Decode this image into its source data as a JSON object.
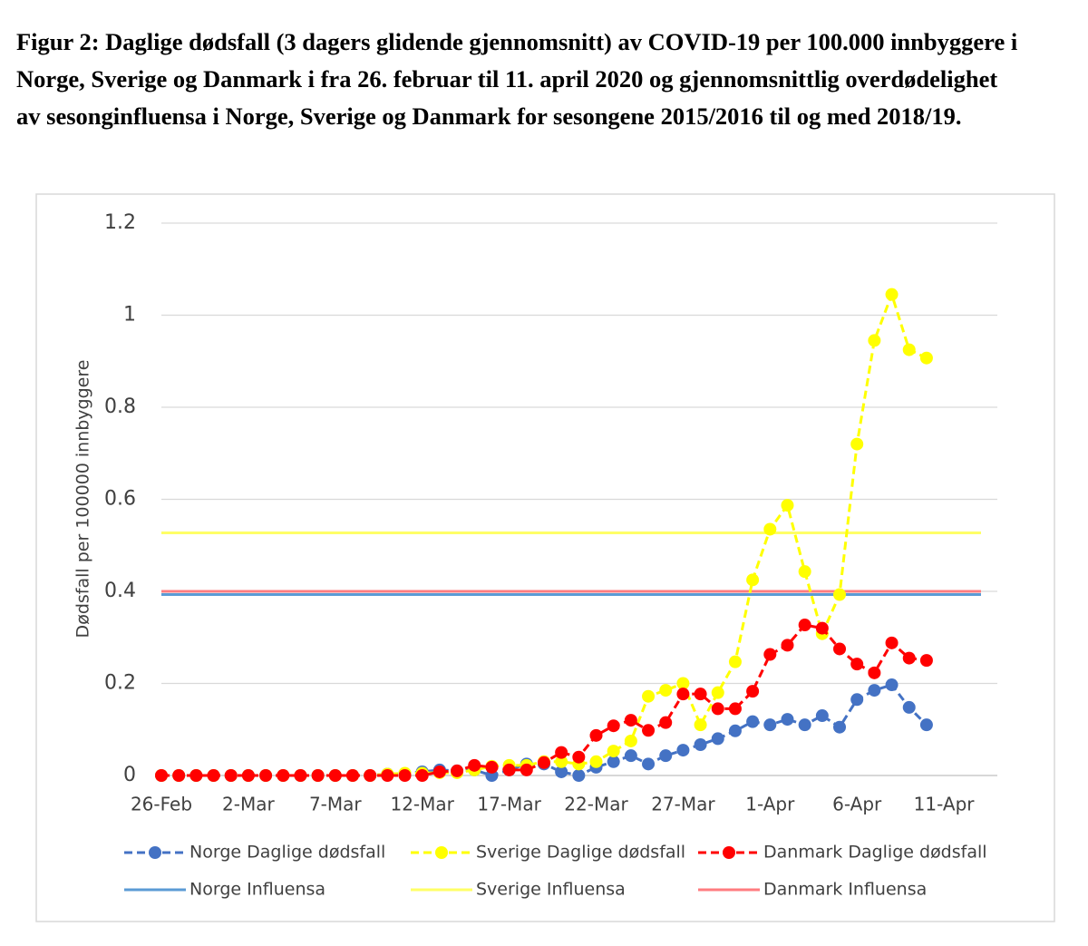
{
  "chart_data": {
    "type": "line",
    "title": "Figur 2: Daglige dødsfall (3 dagers glidende gjennomsnitt) av COVID-19 per 100.000 innbyggere i Norge, Sverige og Danmark i fra 26. februar til 11. april 2020 og gjennomsnittlig overdødelighet av sesonginfluensa i Norge, Sverige og Danmark for sesongene 2015/2016 til og med 2018/19.",
    "y_label": "Dødsfall per 100000 innbyggere",
    "categories": [
      "26-Feb",
      null,
      null,
      null,
      null,
      "2-Mar",
      null,
      null,
      null,
      null,
      "7-Mar",
      null,
      null,
      null,
      null,
      "12-Mar",
      null,
      null,
      null,
      null,
      "17-Mar",
      null,
      null,
      null,
      null,
      "22-Mar",
      null,
      null,
      null,
      null,
      "27-Mar",
      null,
      null,
      null,
      null,
      "1-Apr",
      null,
      null,
      null,
      null,
      "6-Apr",
      null,
      null,
      null,
      null,
      "11-Apr"
    ],
    "series": [
      {
        "name": "Norge Daglige dødsfall",
        "color": "#4472c4",
        "values": [
          0,
          0,
          0,
          0,
          0,
          0,
          0,
          0,
          0,
          0,
          0,
          0,
          0,
          0.003,
          0.004,
          0.008,
          0.012,
          0.01,
          0.012,
          0,
          0.012,
          0.025,
          0.025,
          0.008,
          0,
          0.018,
          0.03,
          0.043,
          0.025,
          0.043,
          0.055,
          0.067,
          0.08,
          0.097,
          0.117,
          0.11,
          0.122,
          0.11,
          0.13,
          0.105,
          0.165,
          0.185,
          0.197,
          0.148,
          0.11,
          null
        ]
      },
      {
        "name": "Sverige Daglige dødsfall",
        "color": "#ffff00",
        "values": [
          0,
          0,
          0,
          0,
          0,
          0,
          0,
          0,
          0,
          0,
          0,
          0,
          0,
          0.003,
          0.005,
          0.005,
          0.006,
          0.006,
          0.012,
          0.02,
          0.022,
          0.022,
          0.03,
          0.03,
          0.025,
          0.03,
          0.053,
          0.075,
          0.172,
          0.185,
          0.2,
          0.11,
          0.18,
          0.247,
          0.425,
          0.535,
          0.587,
          0.443,
          0.308,
          0.393,
          0.72,
          0.945,
          1.045,
          0.925,
          0.907,
          null
        ]
      },
      {
        "name": "Danmark Daglige dødsfall",
        "color": "#ff0000",
        "values": [
          0,
          0,
          0,
          0,
          0,
          0,
          0,
          0,
          0,
          0,
          0,
          0,
          0,
          0,
          0,
          0,
          0.008,
          0.01,
          0.022,
          0.018,
          0.012,
          0.012,
          0.028,
          0.05,
          0.04,
          0.087,
          0.108,
          0.12,
          0.098,
          0.115,
          0.177,
          0.177,
          0.145,
          0.145,
          0.183,
          0.263,
          0.283,
          0.327,
          0.32,
          0.275,
          0.242,
          0.223,
          0.288,
          0.255,
          0.25,
          null
        ]
      }
    ],
    "reference_lines": [
      {
        "name": "Norge Influensa",
        "color": "#5b9bd5",
        "value": 0.393
      },
      {
        "name": "Sverige Influensa",
        "color": "#ffff66",
        "value": 0.527
      },
      {
        "name": "Danmark Influensa",
        "color": "#ff7c80",
        "value": 0.4
      }
    ],
    "ylim": [
      0,
      1.2
    ],
    "yticks": [
      0,
      0.2,
      0.4,
      0.6,
      0.8,
      1,
      1.2
    ],
    "grid": true,
    "legend": "bottom"
  }
}
